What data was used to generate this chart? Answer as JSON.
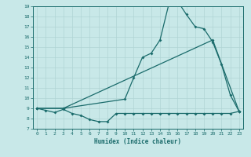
{
  "xlabel": "Humidex (Indice chaleur)",
  "ylabel": "",
  "bg_color": "#c8e8e8",
  "line_color": "#1a6b6b",
  "grid_color": "#b0d4d4",
  "xlim": [
    -0.5,
    23.5
  ],
  "ylim": [
    7,
    19
  ],
  "xticks": [
    0,
    1,
    2,
    3,
    4,
    5,
    6,
    7,
    8,
    9,
    10,
    11,
    12,
    13,
    14,
    15,
    16,
    17,
    18,
    19,
    20,
    21,
    22,
    23
  ],
  "yticks": [
    7,
    8,
    9,
    10,
    11,
    12,
    13,
    14,
    15,
    16,
    17,
    18,
    19
  ],
  "line1_x": [
    0,
    1,
    2,
    3,
    4,
    5,
    6,
    7,
    8,
    9,
    10,
    11,
    12,
    13,
    14,
    15,
    16,
    17,
    18,
    19,
    20,
    21,
    22,
    23
  ],
  "line1_y": [
    9.0,
    8.8,
    8.6,
    8.9,
    8.5,
    8.3,
    7.9,
    7.7,
    7.7,
    8.5,
    8.5,
    8.5,
    8.5,
    8.5,
    8.5,
    8.5,
    8.5,
    8.5,
    8.5,
    8.5,
    8.5,
    8.5,
    8.5,
    8.7
  ],
  "line2_x": [
    0,
    3,
    20,
    23
  ],
  "line2_y": [
    9.0,
    9.0,
    15.7,
    8.7
  ],
  "line3_x": [
    0,
    3,
    10,
    11,
    12,
    13,
    14,
    15,
    16,
    17,
    18,
    19,
    20,
    21,
    22,
    23
  ],
  "line3_y": [
    9.0,
    9.0,
    9.9,
    12.0,
    14.0,
    14.4,
    15.7,
    19.2,
    19.5,
    18.2,
    17.0,
    16.8,
    15.5,
    13.3,
    10.3,
    8.7
  ]
}
